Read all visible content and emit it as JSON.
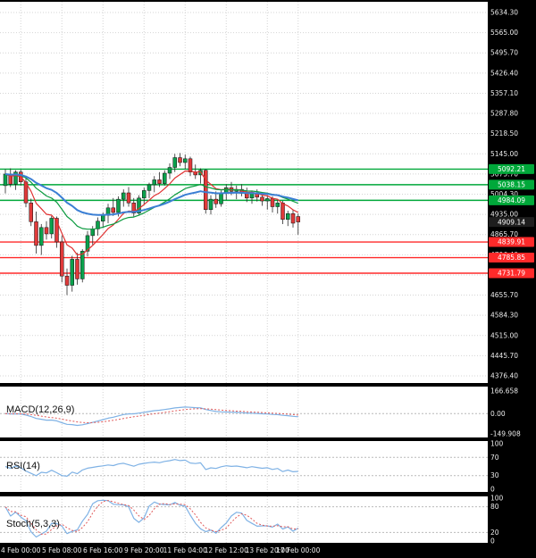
{
  "chart_data": {
    "type": "candlestick",
    "candles": [
      [
        5035,
        5092,
        5008,
        5075
      ],
      [
        5075,
        5095,
        5030,
        5040
      ],
      [
        5040,
        5088,
        5020,
        5082
      ],
      [
        5082,
        5090,
        5035,
        5048
      ],
      [
        5048,
        5062,
        4960,
        4975
      ],
      [
        4975,
        4990,
        4895,
        4910
      ],
      [
        4910,
        4945,
        4800,
        4828
      ],
      [
        4828,
        4902,
        4795,
        4890
      ],
      [
        4890,
        4912,
        4848,
        4868
      ],
      [
        4868,
        4930,
        4852,
        4922
      ],
      [
        4922,
        4928,
        4820,
        4840
      ],
      [
        4840,
        4862,
        4700,
        4722
      ],
      [
        4722,
        4748,
        4656,
        4690
      ],
      [
        4690,
        4792,
        4668,
        4780
      ],
      [
        4780,
        4802,
        4692,
        4712
      ],
      [
        4712,
        4815,
        4700,
        4808
      ],
      [
        4808,
        4878,
        4790,
        4862
      ],
      [
        4862,
        4895,
        4830,
        4885
      ],
      [
        4885,
        4925,
        4862,
        4912
      ],
      [
        4912,
        4942,
        4888,
        4932
      ],
      [
        4932,
        4972,
        4905,
        4958
      ],
      [
        4958,
        4992,
        4930,
        4942
      ],
      [
        4942,
        4998,
        4928,
        4988
      ],
      [
        4988,
        5022,
        4962,
        5010
      ],
      [
        5010,
        5030,
        4962,
        4975
      ],
      [
        4975,
        4992,
        4928,
        4940
      ],
      [
        4940,
        5002,
        4932,
        4992
      ],
      [
        4992,
        5028,
        4970,
        5018
      ],
      [
        5018,
        5045,
        4992,
        5038
      ],
      [
        5038,
        5068,
        5012,
        5055
      ],
      [
        5055,
        5082,
        5030,
        5042
      ],
      [
        5042,
        5088,
        5035,
        5078
      ],
      [
        5078,
        5112,
        5058,
        5098
      ],
      [
        5098,
        5145,
        5082,
        5132
      ],
      [
        5132,
        5148,
        5102,
        5115
      ],
      [
        5115,
        5142,
        5092,
        5128
      ],
      [
        5128,
        5135,
        5068,
        5082
      ],
      [
        5082,
        5108,
        5058,
        5072
      ],
      [
        5072,
        5095,
        5042,
        5088
      ],
      [
        5088,
        5092,
        4938,
        4952
      ],
      [
        4952,
        5002,
        4935,
        4988
      ],
      [
        4988,
        5015,
        4958,
        4972
      ],
      [
        4972,
        5018,
        4962,
        5008
      ],
      [
        5008,
        5040,
        4985,
        5028
      ],
      [
        5028,
        5048,
        5002,
        5015
      ],
      [
        5015,
        5035,
        4988,
        5022
      ],
      [
        5022,
        5040,
        4998,
        5008
      ],
      [
        5008,
        5028,
        4978,
        4992
      ],
      [
        4992,
        5018,
        4972,
        5010
      ],
      [
        5010,
        5022,
        4980,
        4995
      ],
      [
        4995,
        5012,
        4965,
        4982
      ],
      [
        4982,
        5002,
        4952,
        4990
      ],
      [
        4990,
        4998,
        4942,
        4962
      ],
      [
        4962,
        4985,
        4938,
        4975
      ],
      [
        4975,
        4982,
        4902,
        4918
      ],
      [
        4918,
        4948,
        4895,
        4938
      ],
      [
        4938,
        4952,
        4890,
        4905
      ],
      [
        4928,
        4938,
        4865,
        4909.14
      ]
    ],
    "x_axis": {
      "labels": [
        {
          "i": 3,
          "text": "4 Feb 00:00"
        },
        {
          "i": 11,
          "text": "5 Feb 08:00"
        },
        {
          "i": 19,
          "text": "6 Feb 16:00"
        },
        {
          "i": 27,
          "text": "9 Feb 20:00"
        },
        {
          "i": 35,
          "text": "11 Feb 04:00"
        },
        {
          "i": 43,
          "text": "12 Feb 12:00"
        },
        {
          "i": 51,
          "text": "13 Feb 20:00"
        },
        {
          "i": 57,
          "text": "17 Feb 00:00"
        }
      ]
    },
    "y_axis": {
      "ticks": [
        "5634.30",
        "5565.00",
        "5495.70",
        "5426.40",
        "5357.10",
        "5287.80",
        "5218.50",
        "5145.00",
        "5075.70",
        "5004.30",
        "4935.00",
        "4865.70",
        "4796.40",
        "4727.10",
        "4655.70",
        "4584.30",
        "4515.00",
        "4445.70",
        "4376.40"
      ]
    },
    "levels": {
      "resistance": [
        "5092.21",
        "5038.15",
        "4984.09"
      ],
      "support": [
        "4839.91",
        "4785.85",
        "4731.79"
      ],
      "current": "4909.14"
    },
    "moving_averages": [
      {
        "name": "fast",
        "period": 8,
        "color": "#e03030",
        "width": 1.2
      },
      {
        "name": "mid",
        "period": 20,
        "color": "#0c9b40",
        "width": 1.2
      },
      {
        "name": "slow",
        "period": 34,
        "color": "#3b7fd4",
        "width": 2
      }
    ],
    "indicators": {
      "macd": {
        "label": "MACD(12,26,9)",
        "axis_labels": [
          "166.658",
          "0.00",
          "-149.908"
        ]
      },
      "rsi": {
        "label": "RSI(14)",
        "axis_labels": [
          "100",
          "70",
          "30",
          "0"
        ],
        "guides": [
          70,
          30
        ]
      },
      "stoch": {
        "label": "Stoch(5,3,3)",
        "axis_labels": [
          "100",
          "80",
          "20",
          "0"
        ],
        "guides": [
          80,
          20
        ]
      }
    },
    "colors": {
      "background": "#000000",
      "panel": "#ffffff",
      "grid": "#d4d4d4",
      "guide": "#b9b9b9",
      "bull": "#0ba04c",
      "bear": "#e03a3a",
      "wick": "#2a2a2a",
      "resistance": "#00a83a",
      "support": "#ff2a2a",
      "current_badge": "#1e1e1e",
      "axis_text": "#ececec",
      "indicator_line": "#7fb2e5",
      "indicator_signal": "#e05a5a"
    }
  }
}
